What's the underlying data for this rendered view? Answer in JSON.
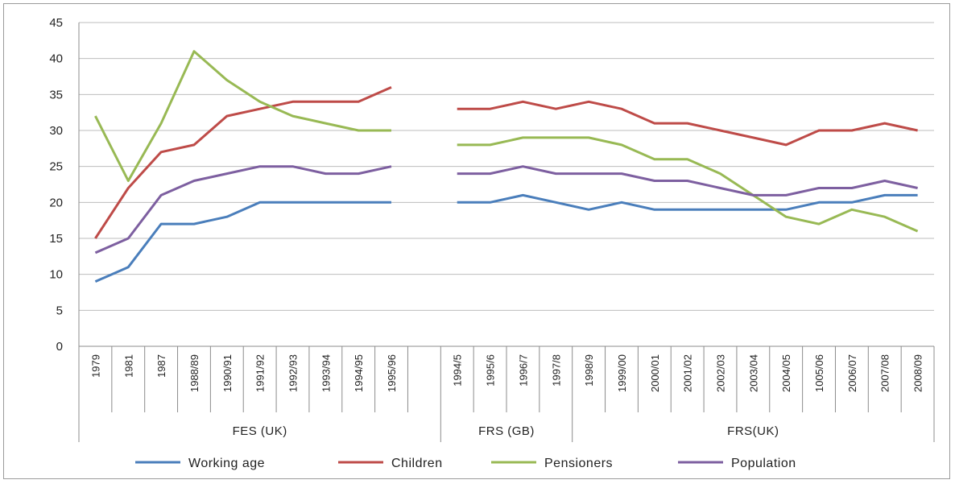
{
  "chart_data": {
    "type": "line",
    "title": "",
    "ylim": [
      0,
      45
    ],
    "yticks": [
      0,
      5,
      10,
      15,
      20,
      25,
      30,
      35,
      40,
      45
    ],
    "grid": true,
    "legend_position": "bottom",
    "categories": [
      "1979",
      "1981",
      "1987",
      "1988/89",
      "1990/91",
      "1991/92",
      "1992/93",
      "1993/94",
      "1994/95",
      "1995/96",
      "",
      "1994/5",
      "1995/6",
      "1996/7",
      "1997/8",
      "1998/9",
      "1999/00",
      "2000/01",
      "2001/02",
      "2002/03",
      "2003/04",
      "2004/05",
      "1005/06",
      "2006/07",
      "2007/08",
      "2008/09"
    ],
    "groups": [
      {
        "label": "FES (UK)",
        "start": 0,
        "end": 10
      },
      {
        "label": "FRS (GB)",
        "start": 11,
        "end": 14
      },
      {
        "label": "FRS(UK)",
        "start": 15,
        "end": 25
      }
    ],
    "series": [
      {
        "name": "Working age",
        "color": "#4a7ebb",
        "values": [
          9,
          11,
          17,
          17,
          18,
          20,
          20,
          20,
          20,
          20,
          null,
          20,
          20,
          21,
          20,
          19,
          20,
          19,
          19,
          19,
          19,
          19,
          20,
          20,
          21,
          21
        ]
      },
      {
        "name": "Children",
        "color": "#be4b48",
        "values": [
          15,
          22,
          27,
          28,
          32,
          33,
          34,
          34,
          34,
          36,
          null,
          33,
          33,
          34,
          33,
          34,
          33,
          31,
          31,
          30,
          29,
          28,
          30,
          30,
          31,
          30
        ]
      },
      {
        "name": "Pensioners",
        "color": "#98b954",
        "values": [
          32,
          23,
          31,
          41,
          37,
          34,
          32,
          31,
          30,
          30,
          null,
          28,
          28,
          29,
          29,
          29,
          28,
          26,
          26,
          24,
          21,
          18,
          17,
          19,
          18,
          16
        ]
      },
      {
        "name": "Population",
        "color": "#7d5fa0",
        "values": [
          13,
          15,
          21,
          23,
          24,
          25,
          25,
          24,
          24,
          25,
          null,
          24,
          24,
          25,
          24,
          24,
          24,
          23,
          23,
          22,
          21,
          21,
          22,
          22,
          23,
          22
        ]
      }
    ]
  }
}
